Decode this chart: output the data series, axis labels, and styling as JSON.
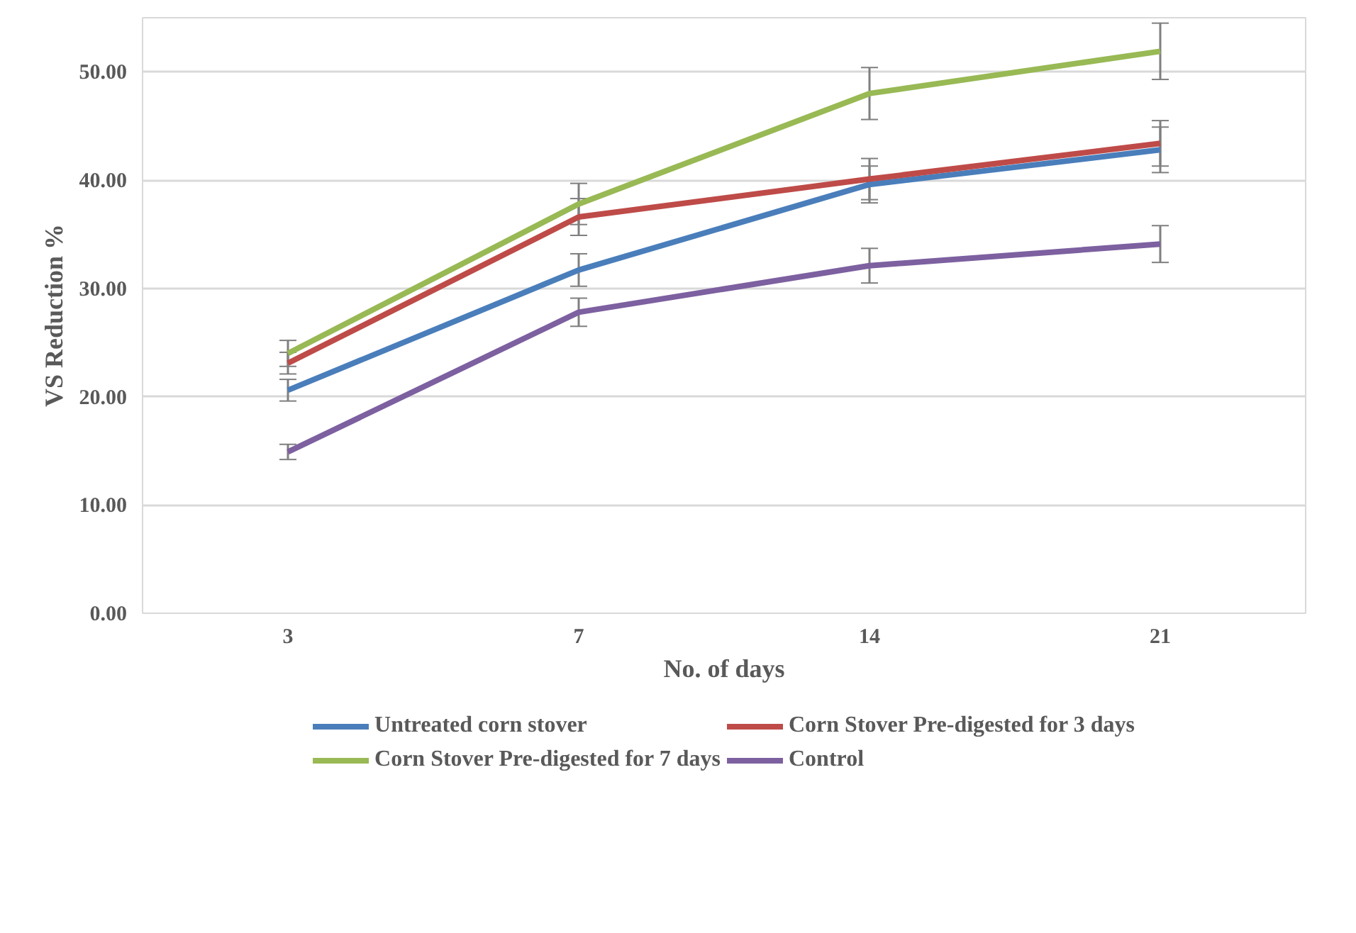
{
  "chart_data": {
    "type": "line",
    "xlabel": "No. of days",
    "ylabel": "VS Reduction %",
    "categories": [
      "3",
      "7",
      "14",
      "21"
    ],
    "series": [
      {
        "name": "Untreated corn stover",
        "color": "#4a7ebb",
        "values": [
          20.6,
          31.7,
          39.6,
          42.8
        ],
        "errors": [
          1.0,
          1.5,
          1.7,
          2.1
        ]
      },
      {
        "name": "Corn Stover Pre-digested for 3 days",
        "color": "#be4b48",
        "values": [
          23.1,
          36.6,
          40.1,
          43.4
        ],
        "errors": [
          1.0,
          1.7,
          1.9,
          2.1
        ]
      },
      {
        "name": "Corn Stover Pre-digested for 7 days",
        "color": "#98b954",
        "values": [
          24.0,
          37.8,
          48.0,
          51.9
        ],
        "errors": [
          1.2,
          1.9,
          2.4,
          2.6
        ]
      },
      {
        "name": "Control",
        "color": "#7d60a0",
        "values": [
          14.9,
          27.8,
          32.1,
          34.1
        ],
        "errors": [
          0.7,
          1.3,
          1.6,
          1.7
        ]
      }
    ],
    "ylim": [
      0,
      55
    ],
    "yticks": [
      {
        "value": 0,
        "label": "0.00"
      },
      {
        "value": 10,
        "label": "10.00"
      },
      {
        "value": 20,
        "label": "20.00"
      },
      {
        "value": 30,
        "label": "30.00"
      },
      {
        "value": 40,
        "label": "40.00"
      },
      {
        "value": 50,
        "label": "50.00"
      }
    ],
    "grid": "y",
    "legend": "bottom",
    "marker": "none",
    "line_style": "solid"
  }
}
